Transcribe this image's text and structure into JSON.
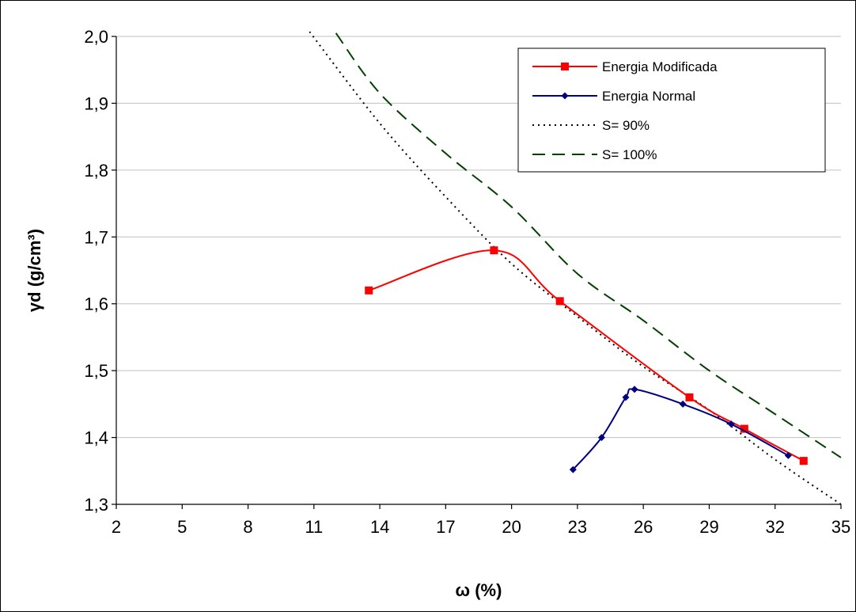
{
  "chart_data": {
    "type": "line",
    "title": "",
    "xlabel": "ω (%)",
    "ylabel": "γd (g/cm³)",
    "xlim": [
      2,
      35
    ],
    "ylim": [
      1.3,
      2.0
    ],
    "x_ticks": [
      "2",
      "5",
      "8",
      "11",
      "14",
      "17",
      "20",
      "23",
      "26",
      "29",
      "32",
      "35"
    ],
    "y_ticks": [
      "1,3",
      "1,4",
      "1,5",
      "1,6",
      "1,7",
      "1,8",
      "1,9",
      "2,0"
    ],
    "grid": "horizontal",
    "legend_position": "top-right",
    "series": [
      {
        "name": "Energia Modificada",
        "color": "#ff0000",
        "marker": "square",
        "line": "solid",
        "x": [
          13.5,
          19.2,
          22.2,
          28.1,
          30.6,
          33.3
        ],
        "y": [
          1.62,
          1.68,
          1.604,
          1.46,
          1.413,
          1.365
        ]
      },
      {
        "name": "Energia Normal",
        "color": "#000080",
        "marker": "diamond",
        "line": "solid",
        "x": [
          22.8,
          24.1,
          25.2,
          25.6,
          27.8,
          30.0,
          32.6
        ],
        "y": [
          1.352,
          1.4,
          1.46,
          1.472,
          1.45,
          1.42,
          1.373
        ]
      },
      {
        "name": "S= 90%",
        "color": "#000000",
        "marker": "none",
        "line": "dotted",
        "x": [
          10.8,
          14.0,
          17.0,
          20.0,
          23.0,
          26.0,
          29.0,
          32.0,
          35.0
        ],
        "y": [
          2.007,
          1.87,
          1.76,
          1.66,
          1.581,
          1.506,
          1.441,
          1.367,
          1.3
        ]
      },
      {
        "name": "S= 100%",
        "color": "#004000",
        "marker": "none",
        "line": "dashed",
        "x": [
          12.0,
          14.0,
          17.0,
          20.0,
          23.0,
          26.0,
          29.0,
          32.0,
          35.0
        ],
        "y": [
          2.005,
          1.915,
          1.825,
          1.745,
          1.645,
          1.575,
          1.5,
          1.435,
          1.37
        ]
      }
    ]
  }
}
